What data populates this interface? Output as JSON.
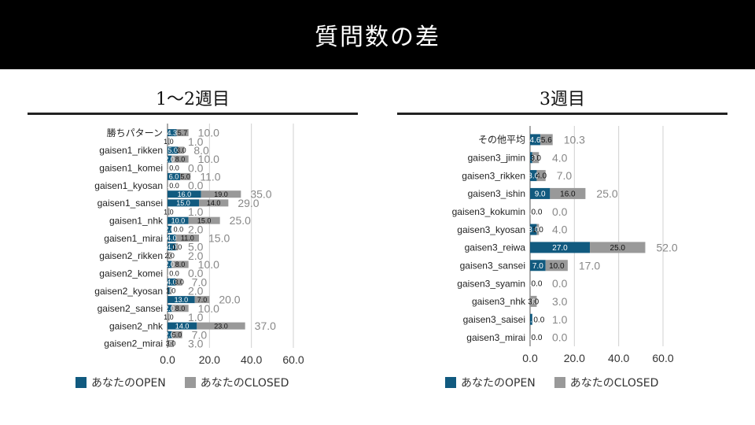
{
  "title": "質問数の差",
  "colors": {
    "open": "#115a7f",
    "closed": "#999999",
    "grid": "#d0d0d0",
    "total": "#888888"
  },
  "chart_data": [
    {
      "type": "bar",
      "orientation": "horizontal",
      "stacked": true,
      "title": "1～2週目",
      "categories": [
        "勝ちパターン",
        "",
        "gaisen1_rikken",
        "",
        "gaisen1_komei",
        "",
        "gaisen1_kyosan",
        "",
        "gaisen1_sansei",
        "",
        "gaisen1_nhk",
        "",
        "gaisen1_mirai",
        "",
        "gaisen2_rikken",
        "",
        "gaisen2_komei",
        "",
        "gaisen2_kyosan",
        "",
        "gaisen2_sansei",
        "",
        "gaisen2_nhk",
        "",
        "gaisen2_mirai"
      ],
      "series": [
        {
          "name": "あなたのOPEN",
          "values": [
            4.3,
            0.0,
            5.0,
            2.0,
            0.0,
            6.0,
            0.0,
            16.0,
            15.0,
            0.0,
            10.0,
            2.0,
            4.0,
            4.0,
            0.0,
            2.0,
            0.0,
            4.0,
            1.0,
            13.0,
            2.0,
            0.0,
            14.0,
            2.0,
            0.0
          ]
        },
        {
          "name": "あなたのCLOSED",
          "values": [
            5.7,
            1.0,
            3.0,
            8.0,
            0.0,
            5.0,
            0.0,
            19.0,
            14.0,
            1.0,
            15.0,
            0.0,
            11.0,
            1.0,
            2.0,
            8.0,
            0.0,
            3.0,
            1.0,
            7.0,
            8.0,
            1.0,
            23.0,
            5.0,
            3.0
          ]
        }
      ],
      "totals": [
        "10.0",
        "1.0",
        "8.0",
        "10.0",
        "0.0",
        "11.0",
        "0.0",
        "35.0",
        "29.0",
        "1.0",
        "25.0",
        "2.0",
        "15.0",
        "5.0",
        "2.0",
        "10.0",
        "0.0",
        "7.0",
        "2.0",
        "20.0",
        "10.0",
        "1.0",
        "37.0",
        "7.0",
        "3.0"
      ],
      "xlim": [
        0,
        60
      ],
      "ticks": [
        "0.0",
        "20.0",
        "40.0",
        "60.0"
      ],
      "legend_position": "bottom"
    },
    {
      "type": "bar",
      "orientation": "horizontal",
      "stacked": true,
      "title": "3週目",
      "categories": [
        "その他平均",
        "gaisen3_jimin",
        "gaisen3_rikken",
        "gaisen3_ishin",
        "gaisen3_kokumin",
        "gaisen3_kyosan",
        "gaisen3_reiwa",
        "gaisen3_sansei",
        "gaisen3_syamin",
        "gaisen3_nhk",
        "gaisen3_saisei",
        "gaisen3_mirai"
      ],
      "series": [
        {
          "name": "あなたのOPEN",
          "values": [
            4.6,
            1.0,
            3.0,
            9.0,
            0.0,
            3.0,
            27.0,
            7.0,
            0.0,
            0.0,
            1.0,
            0.0
          ]
        },
        {
          "name": "あなたのCLOSED",
          "values": [
            5.6,
            3.0,
            4.0,
            16.0,
            0.0,
            1.0,
            25.0,
            10.0,
            0.0,
            3.0,
            0.0,
            0.0
          ]
        }
      ],
      "totals": [
        "10.3",
        "4.0",
        "7.0",
        "25.0",
        "0.0",
        "4.0",
        "52.0",
        "17.0",
        "0.0",
        "3.0",
        "1.0",
        "0.0"
      ],
      "xlim": [
        0,
        60
      ],
      "ticks": [
        "0.0",
        "20.0",
        "40.0",
        "60.0"
      ],
      "legend_position": "bottom"
    }
  ]
}
